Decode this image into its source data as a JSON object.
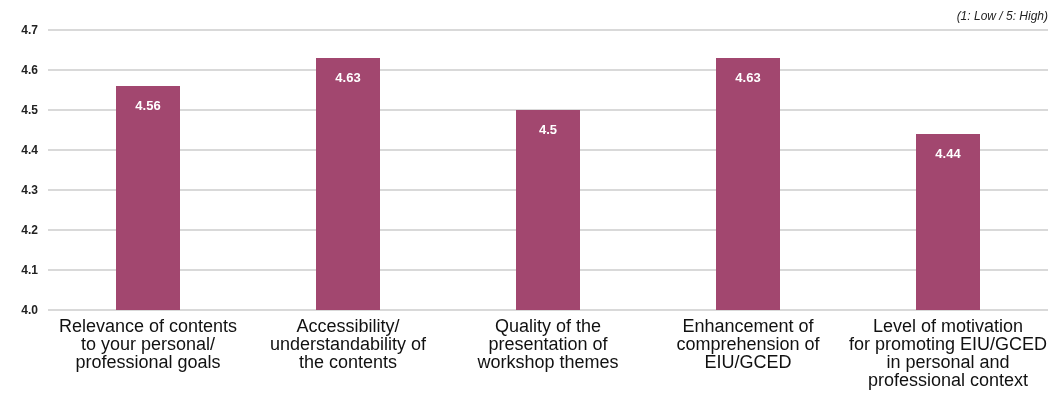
{
  "chart_data": {
    "type": "bar",
    "categories": [
      "Relevance of contents to your personal/ professional goals",
      "Accessibility/ understandability of the contents",
      "Quality of the presentation of workshop themes",
      "Enhancement of comprehension of EIU/GCED",
      "Level of motivation for promoting EIU/GCED in personal and professional context"
    ],
    "values": [
      4.56,
      4.63,
      4.5,
      4.63,
      4.44
    ],
    "color": "#a2476f",
    "ylim": [
      4.0,
      4.7
    ],
    "yticks": [
      {
        "value": 4.0,
        "label": "4.0"
      },
      {
        "value": 4.1,
        "label": "4.1"
      },
      {
        "value": 4.2,
        "label": "4.2"
      },
      {
        "value": 4.3,
        "label": "4.3"
      },
      {
        "value": 4.4,
        "label": "4.4"
      },
      {
        "value": 4.5,
        "label": "4.5"
      },
      {
        "value": 4.6,
        "label": "4.6"
      },
      {
        "value": 4.7,
        "label": "4.7"
      }
    ],
    "grid": "y",
    "data_labels": true,
    "annotations": [
      "(1: Low / 5: High)"
    ]
  }
}
